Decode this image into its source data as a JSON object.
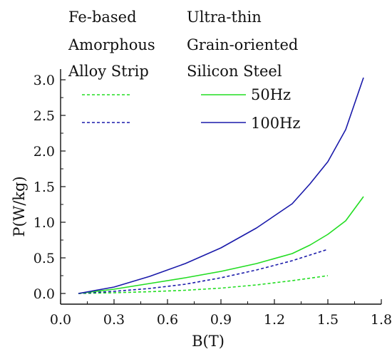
{
  "chart_data": {
    "type": "line",
    "xlabel": "B(T)",
    "ylabel": "P(W/kg)",
    "xlim": [
      0.0,
      1.8
    ],
    "ylim": [
      -0.15,
      3.15
    ],
    "xticks": [
      "0.0",
      "0.3",
      "0.6",
      "0.9",
      "1.2",
      "1.5",
      "1.8"
    ],
    "yticks": [
      "0.0",
      "0.5",
      "1.0",
      "1.5",
      "2.0",
      "2.5",
      "3.0"
    ],
    "grid": false,
    "legend_groups": [
      [
        "Fe-based",
        "Amorphous",
        "Alloy Strip"
      ],
      [
        "Ultra-thin",
        "Grain-oriented",
        "Silicon Steel"
      ]
    ],
    "legend_entries": [
      "50Hz",
      "100Hz"
    ],
    "colors": {
      "50Hz": "#22dd22",
      "100Hz": "#1a1aaa"
    },
    "series": [
      {
        "material": "Fe-based Amorphous Alloy Strip",
        "frequency": "50Hz",
        "style": "dashed",
        "color": "#22dd22",
        "x": [
          0.1,
          0.3,
          0.5,
          0.7,
          0.9,
          1.1,
          1.3,
          1.5
        ],
        "y": [
          0.0,
          0.01,
          0.025,
          0.045,
          0.075,
          0.12,
          0.18,
          0.25
        ]
      },
      {
        "material": "Fe-based Amorphous Alloy Strip",
        "frequency": "100Hz",
        "style": "dashed",
        "color": "#1a1aaa",
        "x": [
          0.1,
          0.3,
          0.5,
          0.7,
          0.9,
          1.1,
          1.3,
          1.5
        ],
        "y": [
          0.0,
          0.03,
          0.07,
          0.13,
          0.22,
          0.33,
          0.46,
          0.62
        ]
      },
      {
        "material": "Ultra-thin Grain-oriented Silicon Steel",
        "frequency": "50Hz",
        "style": "solid",
        "color": "#22dd22",
        "x": [
          0.1,
          0.3,
          0.5,
          0.7,
          0.9,
          1.1,
          1.3,
          1.4,
          1.5,
          1.6,
          1.7
        ],
        "y": [
          0.0,
          0.06,
          0.14,
          0.22,
          0.31,
          0.42,
          0.56,
          0.68,
          0.83,
          1.02,
          1.36
        ]
      },
      {
        "material": "Ultra-thin Grain-oriented Silicon Steel",
        "frequency": "100Hz",
        "style": "solid",
        "color": "#1a1aaa",
        "x": [
          0.1,
          0.3,
          0.5,
          0.7,
          0.9,
          1.1,
          1.3,
          1.4,
          1.5,
          1.6,
          1.7
        ],
        "y": [
          0.0,
          0.09,
          0.24,
          0.42,
          0.64,
          0.92,
          1.26,
          1.54,
          1.85,
          2.3,
          3.03
        ]
      }
    ]
  }
}
